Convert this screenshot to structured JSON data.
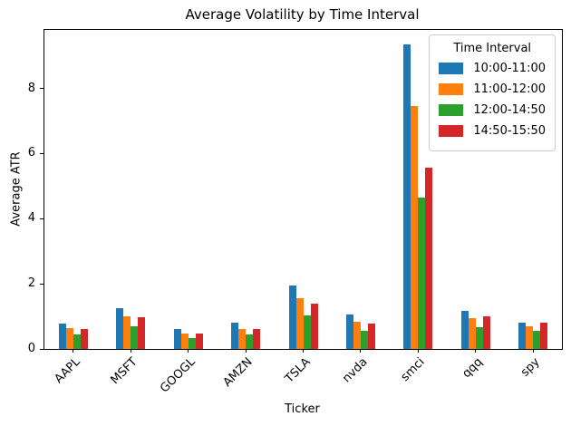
{
  "chart_data": {
    "type": "bar",
    "title": "Average Volatility by Time Interval",
    "xlabel": "Ticker",
    "ylabel": "Average ATR",
    "categories": [
      "AAPL",
      "MSFT",
      "GOOGL",
      "AMZN",
      "TSLA",
      "nvda",
      "smci",
      "qqq",
      "spy"
    ],
    "series": [
      {
        "name": "10:00-11:00",
        "color": "#1f77b4",
        "values": [
          0.78,
          1.26,
          0.61,
          0.8,
          1.96,
          1.06,
          9.36,
          1.16,
          0.82
        ]
      },
      {
        "name": "11:00-12:00",
        "color": "#ff7f0e",
        "values": [
          0.65,
          1.01,
          0.48,
          0.61,
          1.56,
          0.84,
          7.47,
          0.96,
          0.71
        ]
      },
      {
        "name": "12:00-14:50",
        "color": "#2ca02c",
        "values": [
          0.45,
          0.7,
          0.34,
          0.45,
          1.03,
          0.56,
          4.64,
          0.67,
          0.55
        ]
      },
      {
        "name": "14:50-15:50",
        "color": "#d62728",
        "values": [
          0.6,
          0.98,
          0.47,
          0.62,
          1.4,
          0.78,
          5.56,
          0.99,
          0.8
        ]
      }
    ],
    "ylim": [
      0,
      9.8
    ],
    "yticks": [
      0,
      2,
      4,
      6,
      8
    ],
    "grid": false,
    "legend": {
      "title": "Time Interval",
      "position": "upper right"
    }
  }
}
